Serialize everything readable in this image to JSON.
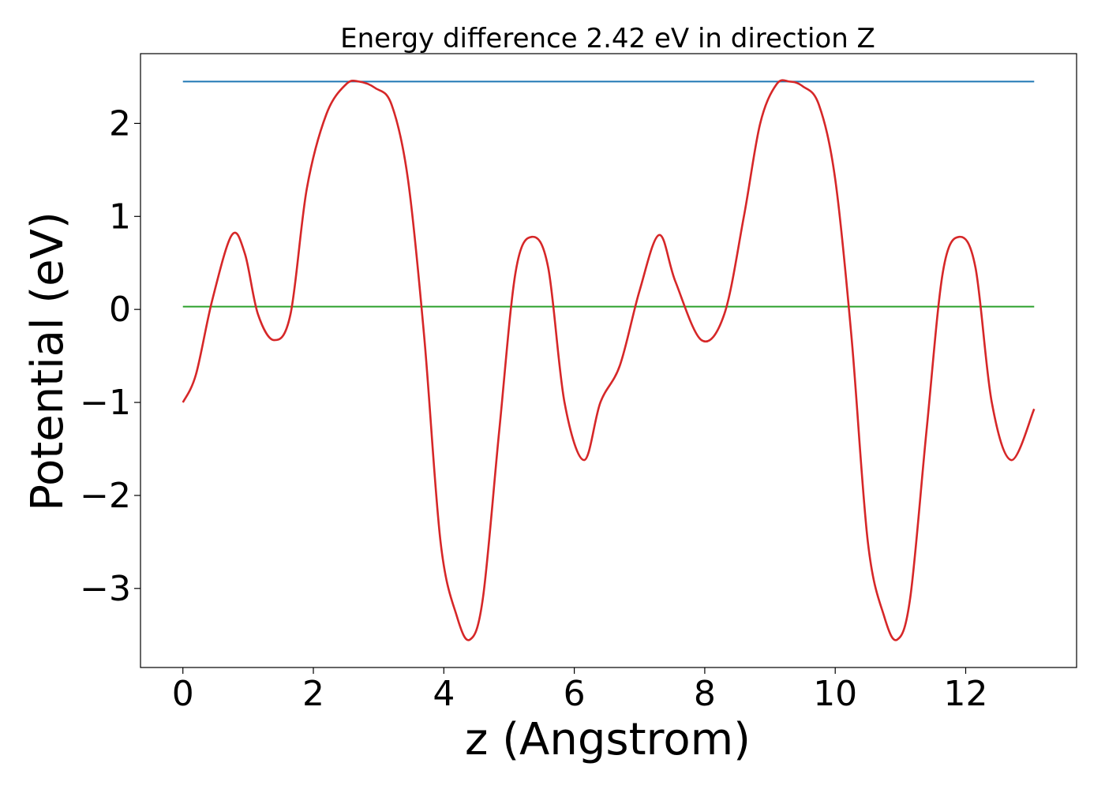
{
  "chart_data": {
    "type": "line",
    "title": "Energy difference 2.42 eV in direction Z",
    "xlabel": "z (Angstrom)",
    "ylabel": "Potential (eV)",
    "xlim": [
      -0.65,
      13.7
    ],
    "ylim": [
      -3.85,
      2.75
    ],
    "xticks": [
      0,
      2,
      4,
      6,
      8,
      10,
      12
    ],
    "xtick_labels": [
      "0",
      "2",
      "4",
      "6",
      "8",
      "10",
      "12"
    ],
    "yticks": [
      -3,
      -2,
      -1,
      0,
      1,
      2
    ],
    "ytick_labels": [
      "−3",
      "−2",
      "−1",
      "0",
      "1",
      "2"
    ],
    "grid": false,
    "series": [
      {
        "color": "#d62728",
        "x": [
          0,
          0.2,
          0.45,
          0.75,
          0.95,
          1.15,
          1.4,
          1.65,
          1.9,
          2.2,
          2.5,
          2.7,
          2.95,
          3.2,
          3.45,
          3.7,
          3.95,
          4.2,
          4.4,
          4.6,
          4.85,
          5.1,
          5.35,
          5.6,
          5.85,
          6.15,
          6.4,
          6.7,
          7.0,
          7.3,
          7.55,
          7.95,
          8.3,
          8.6,
          8.85,
          9.1,
          9.3,
          9.5,
          9.75,
          10.0,
          10.25,
          10.5,
          10.75,
          10.95,
          11.15,
          11.4,
          11.65,
          11.9,
          12.15,
          12.4,
          12.7,
          13.05
        ],
        "y": [
          -1.0,
          -0.7,
          0.1,
          0.8,
          0.6,
          -0.05,
          -0.33,
          -0.05,
          1.3,
          2.1,
          2.42,
          2.45,
          2.38,
          2.2,
          1.4,
          -0.3,
          -2.5,
          -3.3,
          -3.55,
          -3.1,
          -1.3,
          0.4,
          0.78,
          0.45,
          -1.0,
          -1.62,
          -1.0,
          -0.6,
          0.2,
          0.8,
          0.3,
          -0.33,
          -0.05,
          1.0,
          2.0,
          2.42,
          2.45,
          2.4,
          2.2,
          1.4,
          -0.3,
          -2.5,
          -3.3,
          -3.55,
          -3.1,
          -1.3,
          0.4,
          0.78,
          0.45,
          -1.0,
          -1.62,
          -1.07
        ]
      },
      {
        "color": "#1f77b4",
        "x": [
          0,
          13.05
        ],
        "y": [
          2.45,
          2.45
        ]
      },
      {
        "color": "#2ca02c",
        "x": [
          0,
          13.05
        ],
        "y": [
          0.03,
          0.03
        ]
      }
    ]
  }
}
